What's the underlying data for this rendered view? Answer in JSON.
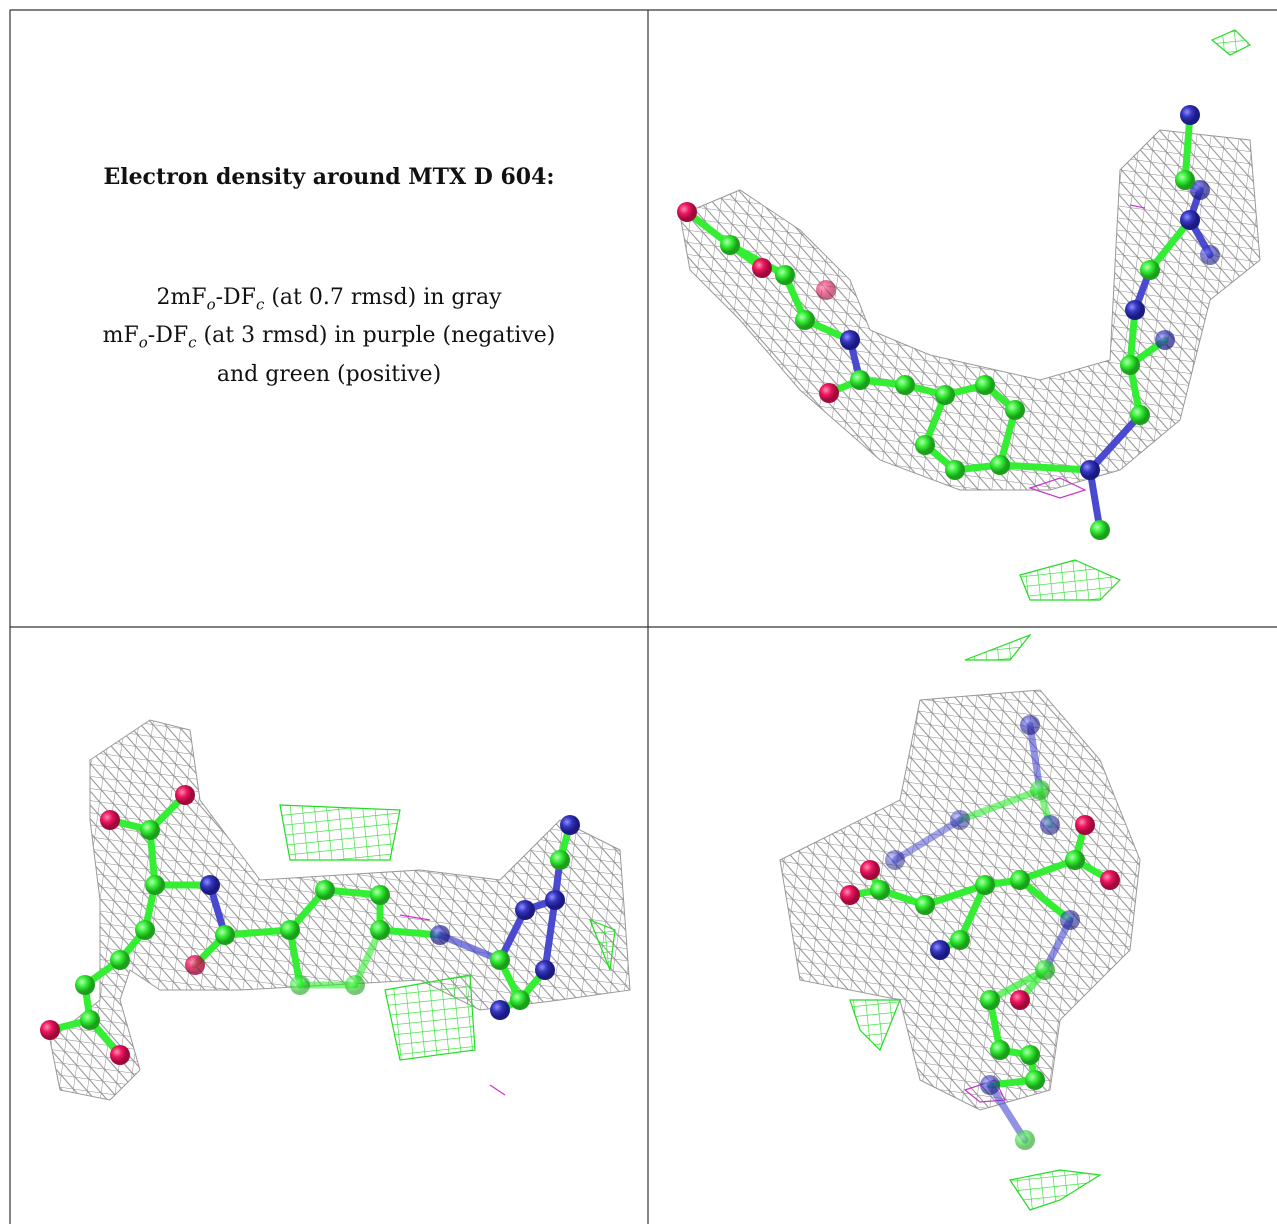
{
  "header": {
    "title": "Electron density around MTX D 604:"
  },
  "legend": {
    "lines": [
      [
        "2mF",
        "o",
        "-DF",
        "c",
        " (at 0.7 rmsd) in gray"
      ],
      [
        "mF",
        "o",
        "-DF",
        "c",
        " (at 3 rmsd) in purple (negative)"
      ],
      [
        "and green (positive)"
      ]
    ]
  }
}
